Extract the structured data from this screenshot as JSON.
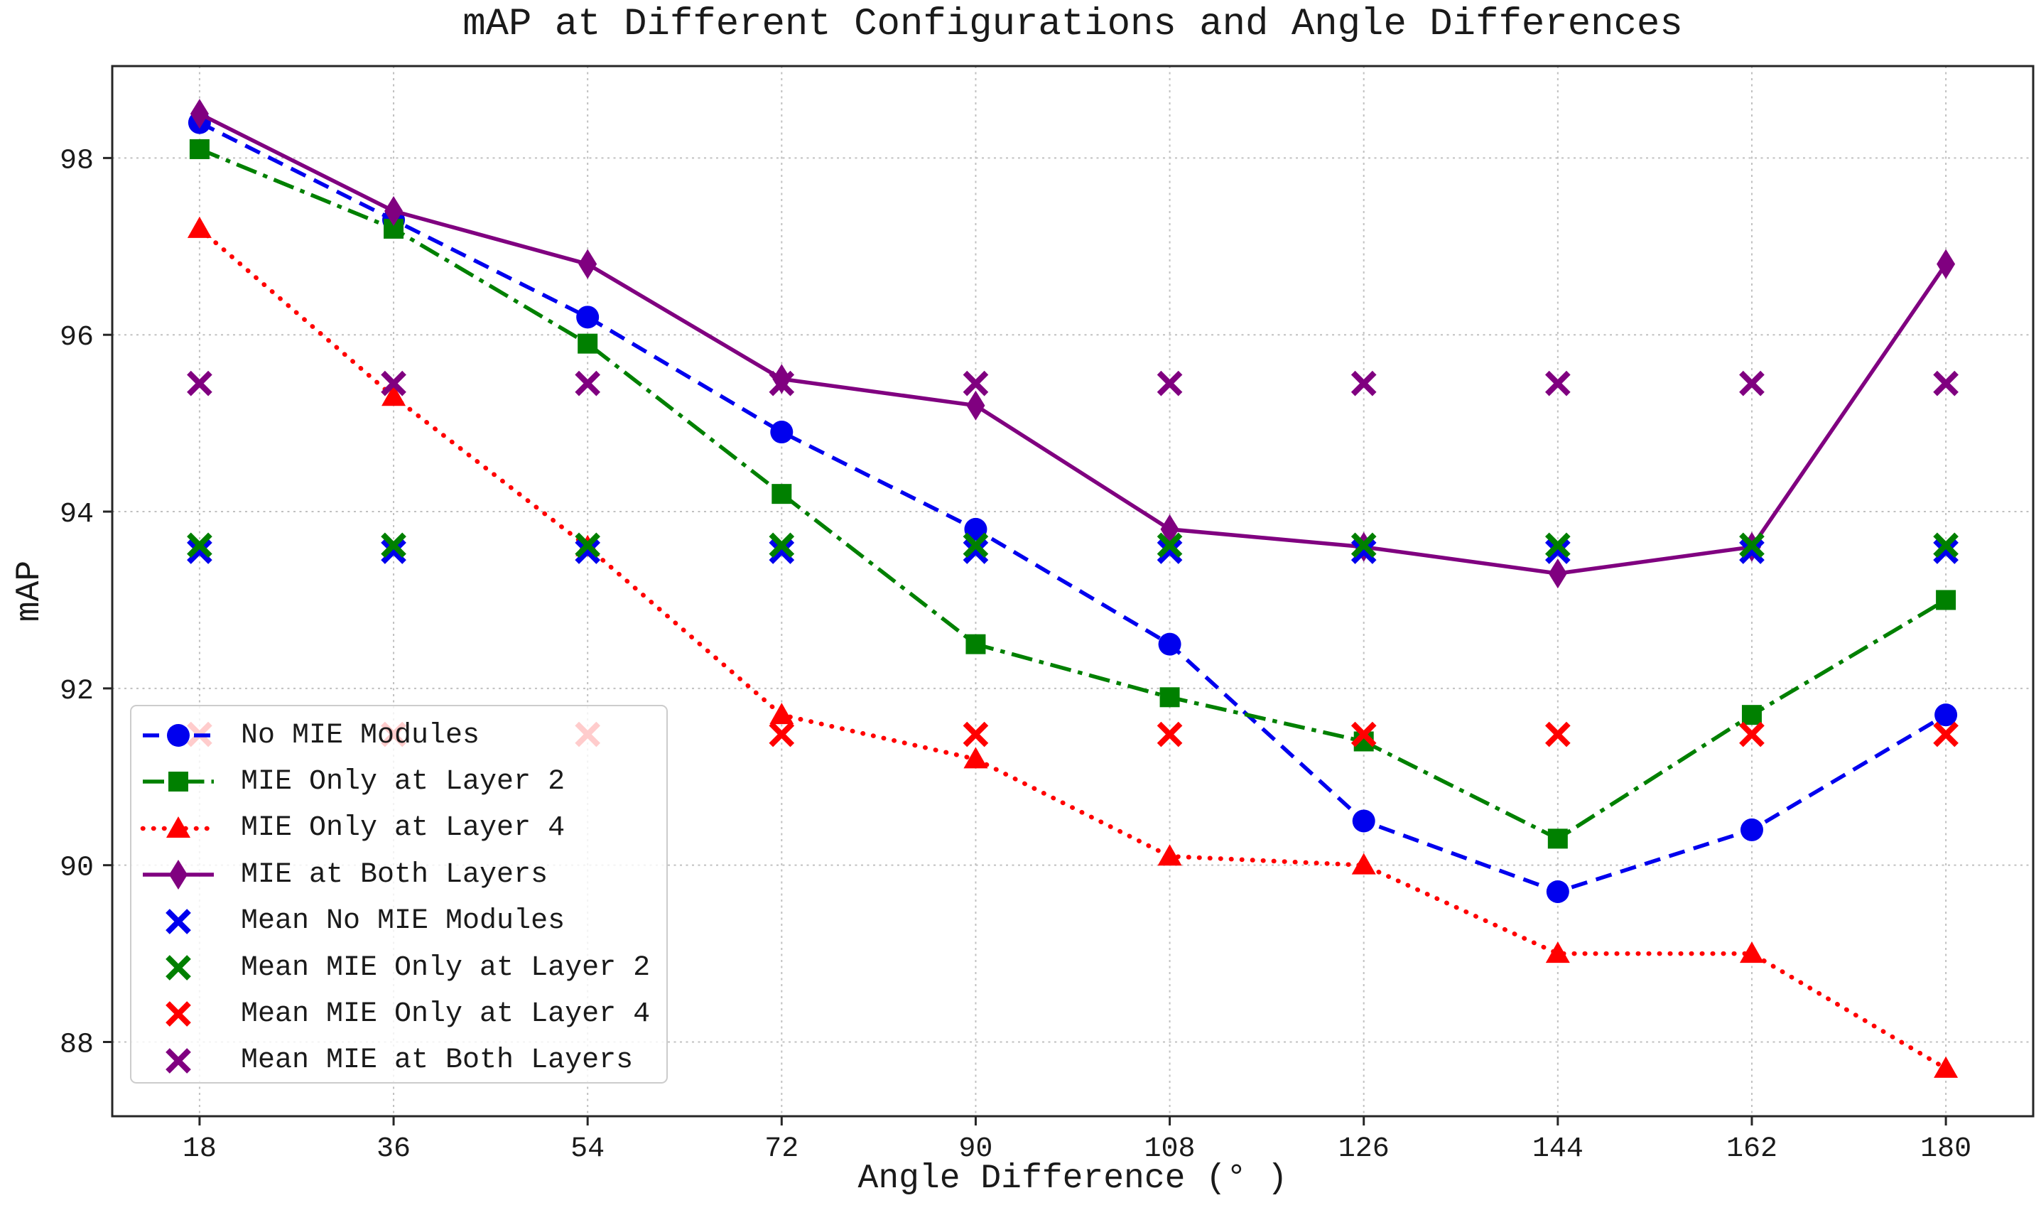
{
  "chart_data": {
    "type": "line",
    "title": "mAP at Different Configurations and Angle Differences",
    "xlabel": "Angle Difference (° )",
    "ylabel": "mAP",
    "x": [
      18,
      36,
      54,
      72,
      90,
      108,
      126,
      144,
      162,
      180
    ],
    "xticks": [
      18,
      36,
      54,
      72,
      90,
      108,
      126,
      144,
      162,
      180
    ],
    "yticks": [
      88,
      90,
      92,
      94,
      96,
      98
    ],
    "xlim": [
      9.9,
      188.1
    ],
    "ylim": [
      87.16,
      99.04
    ],
    "grid": true,
    "legend_position": "lower left",
    "series": [
      {
        "name": "No MIE Modules",
        "color": "#0000ee",
        "linestyle": "dashed",
        "marker": "circle",
        "values": [
          98.4,
          97.3,
          96.2,
          94.9,
          93.8,
          92.5,
          90.5,
          89.7,
          90.4,
          91.7
        ]
      },
      {
        "name": "MIE Only at Layer 2",
        "color": "#008000",
        "linestyle": "dashdot",
        "marker": "square",
        "values": [
          98.1,
          97.2,
          95.9,
          94.2,
          92.5,
          91.9,
          91.4,
          90.3,
          91.7,
          93.0
        ]
      },
      {
        "name": "MIE Only at Layer 4",
        "color": "#ff0000",
        "linestyle": "dotted",
        "marker": "triangle",
        "values": [
          97.2,
          95.3,
          93.6,
          91.7,
          91.2,
          90.1,
          90.0,
          89.0,
          89.0,
          87.7
        ]
      },
      {
        "name": "MIE at Both Layers",
        "color": "#800080",
        "linestyle": "solid",
        "marker": "diamond",
        "values": [
          98.5,
          97.4,
          96.8,
          95.5,
          95.2,
          93.8,
          93.6,
          93.3,
          93.6,
          96.8
        ]
      }
    ],
    "mean_series": [
      {
        "name": "Mean No MIE Modules",
        "color": "#0000ee",
        "marker": "x",
        "value": 93.55
      },
      {
        "name": "Mean MIE Only at Layer 2",
        "color": "#008000",
        "marker": "x",
        "value": 93.62
      },
      {
        "name": "Mean MIE Only at Layer 4",
        "color": "#ff0000",
        "marker": "x",
        "value": 91.48
      },
      {
        "name": "Mean MIE at Both Layers",
        "color": "#800080",
        "marker": "x",
        "value": 95.45
      }
    ],
    "colors": {
      "grid": "#c0c0c0",
      "spine": "#262626",
      "background": "#ffffff",
      "text": "#1a1a1a"
    }
  }
}
